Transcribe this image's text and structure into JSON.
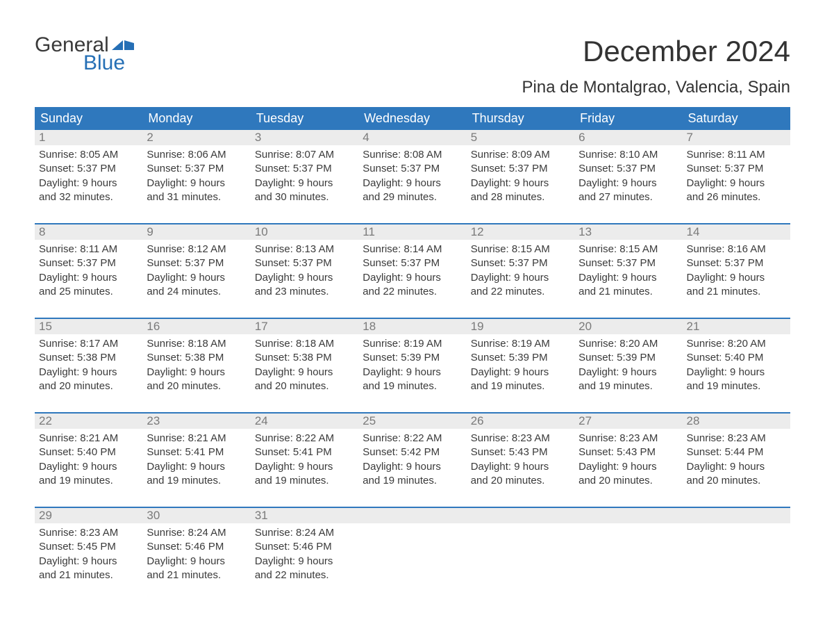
{
  "logo": {
    "word1": "General",
    "word2": "Blue"
  },
  "colors": {
    "brand_blue": "#256fb5",
    "header_blue": "#2f78bd",
    "band_gray": "#ececec",
    "text_dark": "#333333",
    "text_muted": "#7a7a7a",
    "background": "#ffffff"
  },
  "typography": {
    "title_fontsize": 42,
    "subtitle_fontsize": 24,
    "dow_fontsize": 18,
    "body_fontsize": 15,
    "font_family": "Arial"
  },
  "title": "December 2024",
  "subtitle": "Pina de Montalgrao, Valencia, Spain",
  "calendar": {
    "days_of_week": [
      "Sunday",
      "Monday",
      "Tuesday",
      "Wednesday",
      "Thursday",
      "Friday",
      "Saturday"
    ],
    "weeks": [
      [
        {
          "n": "1",
          "sunrise": "Sunrise: 8:05 AM",
          "sunset": "Sunset: 5:37 PM",
          "day1": "Daylight: 9 hours",
          "day2": "and 32 minutes."
        },
        {
          "n": "2",
          "sunrise": "Sunrise: 8:06 AM",
          "sunset": "Sunset: 5:37 PM",
          "day1": "Daylight: 9 hours",
          "day2": "and 31 minutes."
        },
        {
          "n": "3",
          "sunrise": "Sunrise: 8:07 AM",
          "sunset": "Sunset: 5:37 PM",
          "day1": "Daylight: 9 hours",
          "day2": "and 30 minutes."
        },
        {
          "n": "4",
          "sunrise": "Sunrise: 8:08 AM",
          "sunset": "Sunset: 5:37 PM",
          "day1": "Daylight: 9 hours",
          "day2": "and 29 minutes."
        },
        {
          "n": "5",
          "sunrise": "Sunrise: 8:09 AM",
          "sunset": "Sunset: 5:37 PM",
          "day1": "Daylight: 9 hours",
          "day2": "and 28 minutes."
        },
        {
          "n": "6",
          "sunrise": "Sunrise: 8:10 AM",
          "sunset": "Sunset: 5:37 PM",
          "day1": "Daylight: 9 hours",
          "day2": "and 27 minutes."
        },
        {
          "n": "7",
          "sunrise": "Sunrise: 8:11 AM",
          "sunset": "Sunset: 5:37 PM",
          "day1": "Daylight: 9 hours",
          "day2": "and 26 minutes."
        }
      ],
      [
        {
          "n": "8",
          "sunrise": "Sunrise: 8:11 AM",
          "sunset": "Sunset: 5:37 PM",
          "day1": "Daylight: 9 hours",
          "day2": "and 25 minutes."
        },
        {
          "n": "9",
          "sunrise": "Sunrise: 8:12 AM",
          "sunset": "Sunset: 5:37 PM",
          "day1": "Daylight: 9 hours",
          "day2": "and 24 minutes."
        },
        {
          "n": "10",
          "sunrise": "Sunrise: 8:13 AM",
          "sunset": "Sunset: 5:37 PM",
          "day1": "Daylight: 9 hours",
          "day2": "and 23 minutes."
        },
        {
          "n": "11",
          "sunrise": "Sunrise: 8:14 AM",
          "sunset": "Sunset: 5:37 PM",
          "day1": "Daylight: 9 hours",
          "day2": "and 22 minutes."
        },
        {
          "n": "12",
          "sunrise": "Sunrise: 8:15 AM",
          "sunset": "Sunset: 5:37 PM",
          "day1": "Daylight: 9 hours",
          "day2": "and 22 minutes."
        },
        {
          "n": "13",
          "sunrise": "Sunrise: 8:15 AM",
          "sunset": "Sunset: 5:37 PM",
          "day1": "Daylight: 9 hours",
          "day2": "and 21 minutes."
        },
        {
          "n": "14",
          "sunrise": "Sunrise: 8:16 AM",
          "sunset": "Sunset: 5:37 PM",
          "day1": "Daylight: 9 hours",
          "day2": "and 21 minutes."
        }
      ],
      [
        {
          "n": "15",
          "sunrise": "Sunrise: 8:17 AM",
          "sunset": "Sunset: 5:38 PM",
          "day1": "Daylight: 9 hours",
          "day2": "and 20 minutes."
        },
        {
          "n": "16",
          "sunrise": "Sunrise: 8:18 AM",
          "sunset": "Sunset: 5:38 PM",
          "day1": "Daylight: 9 hours",
          "day2": "and 20 minutes."
        },
        {
          "n": "17",
          "sunrise": "Sunrise: 8:18 AM",
          "sunset": "Sunset: 5:38 PM",
          "day1": "Daylight: 9 hours",
          "day2": "and 20 minutes."
        },
        {
          "n": "18",
          "sunrise": "Sunrise: 8:19 AM",
          "sunset": "Sunset: 5:39 PM",
          "day1": "Daylight: 9 hours",
          "day2": "and 19 minutes."
        },
        {
          "n": "19",
          "sunrise": "Sunrise: 8:19 AM",
          "sunset": "Sunset: 5:39 PM",
          "day1": "Daylight: 9 hours",
          "day2": "and 19 minutes."
        },
        {
          "n": "20",
          "sunrise": "Sunrise: 8:20 AM",
          "sunset": "Sunset: 5:39 PM",
          "day1": "Daylight: 9 hours",
          "day2": "and 19 minutes."
        },
        {
          "n": "21",
          "sunrise": "Sunrise: 8:20 AM",
          "sunset": "Sunset: 5:40 PM",
          "day1": "Daylight: 9 hours",
          "day2": "and 19 minutes."
        }
      ],
      [
        {
          "n": "22",
          "sunrise": "Sunrise: 8:21 AM",
          "sunset": "Sunset: 5:40 PM",
          "day1": "Daylight: 9 hours",
          "day2": "and 19 minutes."
        },
        {
          "n": "23",
          "sunrise": "Sunrise: 8:21 AM",
          "sunset": "Sunset: 5:41 PM",
          "day1": "Daylight: 9 hours",
          "day2": "and 19 minutes."
        },
        {
          "n": "24",
          "sunrise": "Sunrise: 8:22 AM",
          "sunset": "Sunset: 5:41 PM",
          "day1": "Daylight: 9 hours",
          "day2": "and 19 minutes."
        },
        {
          "n": "25",
          "sunrise": "Sunrise: 8:22 AM",
          "sunset": "Sunset: 5:42 PM",
          "day1": "Daylight: 9 hours",
          "day2": "and 19 minutes."
        },
        {
          "n": "26",
          "sunrise": "Sunrise: 8:23 AM",
          "sunset": "Sunset: 5:43 PM",
          "day1": "Daylight: 9 hours",
          "day2": "and 20 minutes."
        },
        {
          "n": "27",
          "sunrise": "Sunrise: 8:23 AM",
          "sunset": "Sunset: 5:43 PM",
          "day1": "Daylight: 9 hours",
          "day2": "and 20 minutes."
        },
        {
          "n": "28",
          "sunrise": "Sunrise: 8:23 AM",
          "sunset": "Sunset: 5:44 PM",
          "day1": "Daylight: 9 hours",
          "day2": "and 20 minutes."
        }
      ],
      [
        {
          "n": "29",
          "sunrise": "Sunrise: 8:23 AM",
          "sunset": "Sunset: 5:45 PM",
          "day1": "Daylight: 9 hours",
          "day2": "and 21 minutes."
        },
        {
          "n": "30",
          "sunrise": "Sunrise: 8:24 AM",
          "sunset": "Sunset: 5:46 PM",
          "day1": "Daylight: 9 hours",
          "day2": "and 21 minutes."
        },
        {
          "n": "31",
          "sunrise": "Sunrise: 8:24 AM",
          "sunset": "Sunset: 5:46 PM",
          "day1": "Daylight: 9 hours",
          "day2": "and 22 minutes."
        },
        {
          "empty": true
        },
        {
          "empty": true
        },
        {
          "empty": true
        },
        {
          "empty": true
        }
      ]
    ]
  }
}
